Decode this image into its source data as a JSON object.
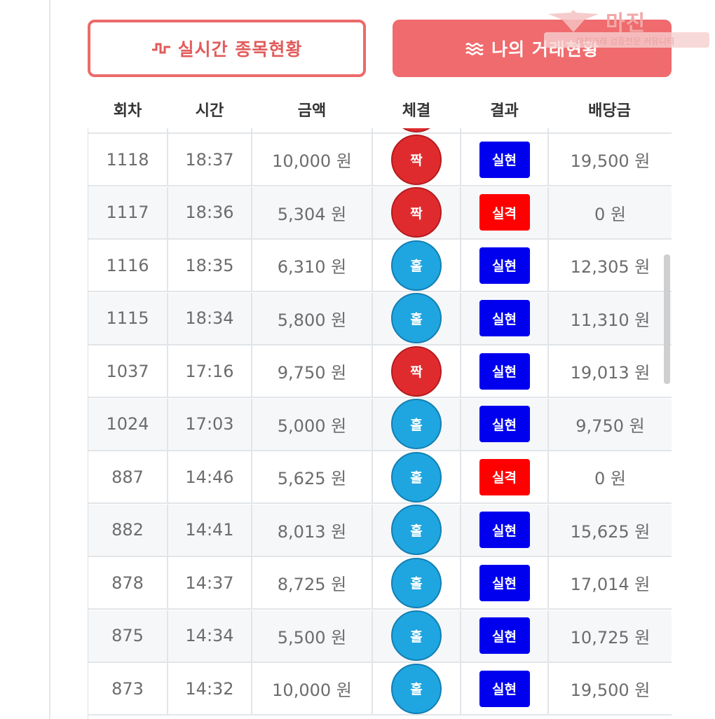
{
  "tabs": {
    "realtime_label": "실시간 종목현황",
    "mytrades_label": "나의 거래현황"
  },
  "logo": {
    "brand": "마진",
    "tagline": "마진거래 검증전문 커뮤니티"
  },
  "table": {
    "headers": [
      "회차",
      "시간",
      "금액",
      "체결",
      "결과",
      "배당금"
    ],
    "rows": [
      {
        "round": "1118",
        "time": "18:37",
        "amount": "10,000 원",
        "pick": "짝",
        "pick_color": "red",
        "result": "실현",
        "result_type": "win",
        "payout": "19,500 원"
      },
      {
        "round": "1117",
        "time": "18:36",
        "amount": "5,304 원",
        "pick": "짝",
        "pick_color": "red",
        "result": "실격",
        "result_type": "lose",
        "payout": "0 원"
      },
      {
        "round": "1116",
        "time": "18:35",
        "amount": "6,310 원",
        "pick": "홀",
        "pick_color": "blue",
        "result": "실현",
        "result_type": "win",
        "payout": "12,305 원"
      },
      {
        "round": "1115",
        "time": "18:34",
        "amount": "5,800 원",
        "pick": "홀",
        "pick_color": "blue",
        "result": "실현",
        "result_type": "win",
        "payout": "11,310 원"
      },
      {
        "round": "1037",
        "time": "17:16",
        "amount": "9,750 원",
        "pick": "짝",
        "pick_color": "red",
        "result": "실현",
        "result_type": "win",
        "payout": "19,013 원"
      },
      {
        "round": "1024",
        "time": "17:03",
        "amount": "5,000 원",
        "pick": "홀",
        "pick_color": "blue",
        "result": "실현",
        "result_type": "win",
        "payout": "9,750 원"
      },
      {
        "round": "887",
        "time": "14:46",
        "amount": "5,625 원",
        "pick": "홀",
        "pick_color": "blue",
        "result": "실격",
        "result_type": "lose",
        "payout": "0 원"
      },
      {
        "round": "882",
        "time": "14:41",
        "amount": "8,013 원",
        "pick": "홀",
        "pick_color": "blue",
        "result": "실현",
        "result_type": "win",
        "payout": "15,625 원"
      },
      {
        "round": "878",
        "time": "14:37",
        "amount": "8,725 원",
        "pick": "홀",
        "pick_color": "blue",
        "result": "실현",
        "result_type": "win",
        "payout": "17,014 원"
      },
      {
        "round": "875",
        "time": "14:34",
        "amount": "5,500 원",
        "pick": "홀",
        "pick_color": "blue",
        "result": "실현",
        "result_type": "win",
        "payout": "10,725 원"
      },
      {
        "round": "873",
        "time": "14:32",
        "amount": "10,000 원",
        "pick": "홀",
        "pick_color": "blue",
        "result": "실현",
        "result_type": "win",
        "payout": "19,500 원"
      }
    ]
  },
  "colors": {
    "accent": "#ef6b6d",
    "odd_ball": "#1fa6e0",
    "even_ball": "#e02b2e",
    "win_tag": "#0000ee",
    "lose_tag": "#ff0000"
  },
  "icons": {
    "realtime": "pulse-icon",
    "mytrades": "waves-icon"
  }
}
